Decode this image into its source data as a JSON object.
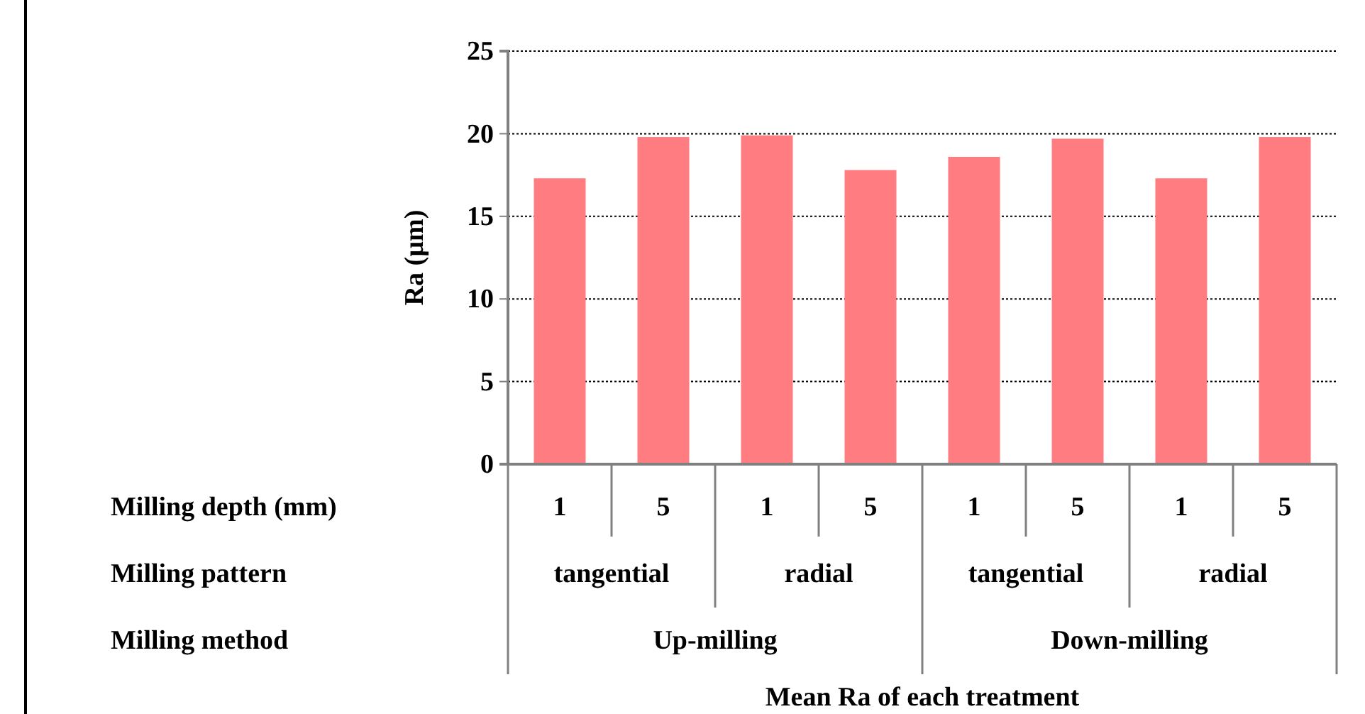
{
  "chart_data": {
    "type": "bar",
    "categories": [
      "1",
      "5",
      "1",
      "5",
      "1",
      "5",
      "1",
      "5"
    ],
    "values": [
      17.3,
      19.8,
      19.9,
      17.8,
      18.6,
      19.7,
      17.3,
      19.8
    ],
    "color": "#ff7c80",
    "ylim": [
      0,
      25
    ],
    "yticks": [
      0,
      5,
      10,
      15,
      20,
      25
    ],
    "grid": "y",
    "ylabel": "Ra (µm)",
    "annotations": [
      "Milling depth (mm)",
      "Milling pattern",
      "Milling method",
      "tangential",
      "radial",
      "tangential",
      "radial",
      "Up-milling",
      "Down-milling",
      "Mean Ra of each treatment"
    ]
  }
}
